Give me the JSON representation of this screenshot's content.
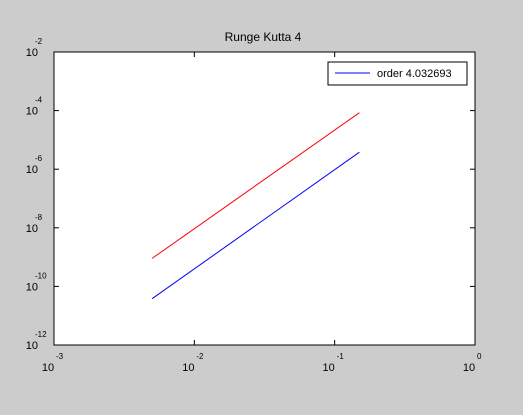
{
  "chart_data": {
    "type": "line",
    "title": "Runge Kutta 4",
    "xlabel": "",
    "ylabel": "",
    "xscale": "log",
    "yscale": "log",
    "xlim": [
      0.001,
      1
    ],
    "ylim": [
      1e-12,
      0.01
    ],
    "grid": false,
    "legend_position": "top-right",
    "x_ticks": [
      {
        "value": 0.001,
        "base": "10",
        "exp": "-3"
      },
      {
        "value": 0.01,
        "base": "10",
        "exp": "-2"
      },
      {
        "value": 0.1,
        "base": "10",
        "exp": "-1"
      },
      {
        "value": 1,
        "base": "10",
        "exp": "0"
      }
    ],
    "y_ticks": [
      {
        "value": 1e-12,
        "base": "10",
        "exp": "-12"
      },
      {
        "value": 1e-10,
        "base": "10",
        "exp": "-10"
      },
      {
        "value": 1e-08,
        "base": "10",
        "exp": "-8"
      },
      {
        "value": 1e-06,
        "base": "10",
        "exp": "-6"
      },
      {
        "value": 0.0001,
        "base": "10",
        "exp": "-4"
      },
      {
        "value": 0.01,
        "base": "10",
        "exp": "-2"
      }
    ],
    "legend": [
      {
        "label": "order 4.032693",
        "color": "#0000ff"
      }
    ],
    "series": [
      {
        "color": "#ff0000",
        "x": [
          0.005,
          0.15
        ],
        "y": [
          9e-10,
          8.5e-05
        ]
      },
      {
        "color": "#0000ff",
        "x": [
          0.005,
          0.15
        ],
        "y": [
          3.8e-11,
          3.8e-06
        ]
      }
    ]
  }
}
